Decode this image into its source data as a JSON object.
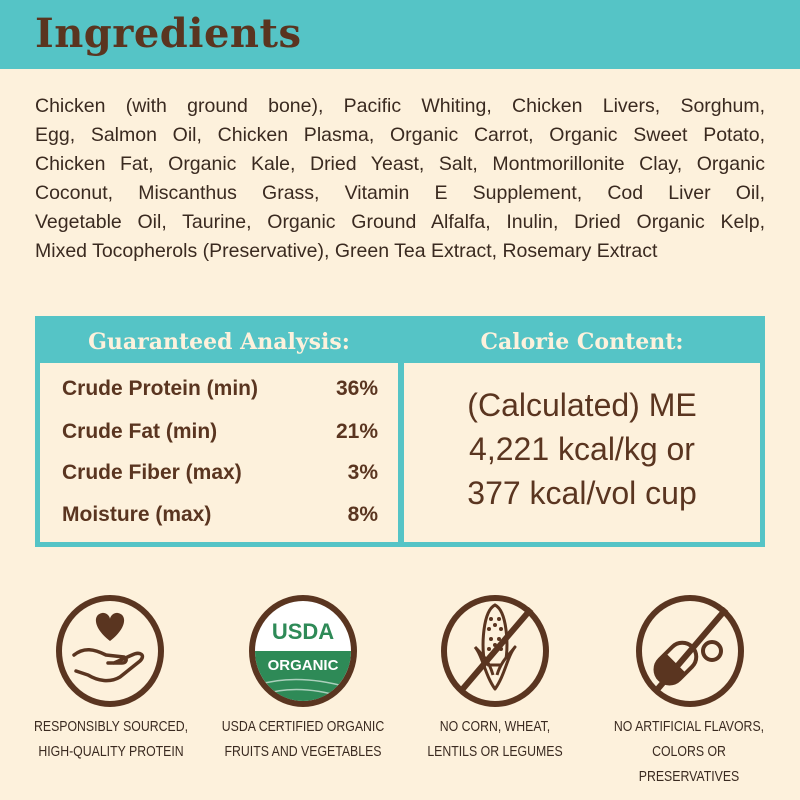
{
  "header": {
    "title": "Ingredients"
  },
  "ingredients": {
    "lines": [
      "Chicken (with ground bone), Pacific Whiting, Chicken Livers, Sorghum,",
      "Egg, Salmon Oil, Chicken Plasma, Organic Carrot, Organic Sweet Potato,",
      "Chicken Fat, Organic Kale, Dried Yeast, Salt, Montmorillonite Clay, Organic",
      "Coconut, Miscanthus Grass, Vitamin E Supplement, Cod Liver Oil,",
      "Vegetable Oil, Taurine, Organic Ground Alfalfa, Inulin, Dried Organic Kelp,",
      "Mixed Tocopherols (Preservative), Green Tea Extract, Rosemary Extract"
    ]
  },
  "analysis": {
    "title": "Guaranteed Analysis:",
    "rows": [
      {
        "label": "Crude Protein (min)",
        "value": "36%"
      },
      {
        "label": "Crude Fat (min)",
        "value": "21%"
      },
      {
        "label": "Crude Fiber (max)",
        "value": "3%"
      },
      {
        "label": "Moisture (max)",
        "value": "8%"
      }
    ]
  },
  "calorie": {
    "title": "Calorie Content:",
    "lines": [
      "(Calculated) ME",
      "4,221 kcal/kg or",
      "377 kcal/vol cup"
    ]
  },
  "badges": [
    {
      "icon": "heart-hand-icon",
      "lines": [
        "RESPONSIBLY SOURCED,",
        "HIGH-QUALITY PROTEIN"
      ]
    },
    {
      "icon": "usda-organic-seal",
      "seal_top": "USDA",
      "seal_bottom": "ORGANIC",
      "lines": [
        "USDA CERTIFIED ORGANIC",
        "FRUITS AND VEGETABLES"
      ]
    },
    {
      "icon": "no-corn-icon",
      "lines": [
        "NO CORN, WHEAT,",
        "LENTILS OR LEGUMES"
      ]
    },
    {
      "icon": "no-pills-icon",
      "lines": [
        "NO ARTIFICIAL FLAVORS,",
        "COLORS OR PRESERVATIVES"
      ]
    }
  ],
  "colors": {
    "teal": "#55c4c6",
    "brown": "#5a3520",
    "cream": "#fdf1dc",
    "usda_green": "#2e8a57"
  }
}
